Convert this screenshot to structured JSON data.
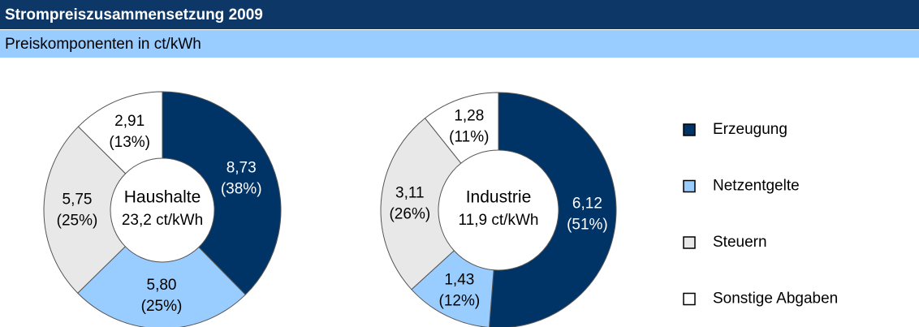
{
  "header": {
    "title": "Strompreiszusammensetzung 2009",
    "subtitle": "Preiskomponenten in ct/kWh"
  },
  "chart_data": [
    {
      "type": "pie",
      "center_label": "Haushalte",
      "center_sublabel": "23,2 ct/kWh",
      "categories": [
        "Erzeugung",
        "Netzentgelte",
        "Steuern",
        "Sonstige Abgaben"
      ],
      "values": [
        8.73,
        5.8,
        5.75,
        2.91
      ],
      "value_labels": [
        "8,73",
        "5,80",
        "5,75",
        "2,91"
      ],
      "shares": [
        38,
        25,
        25,
        13
      ],
      "share_labels": [
        "(38%)",
        "(25%)",
        "(25%)",
        "(13%)"
      ],
      "colors": [
        "#003366",
        "#99ccff",
        "#e8e8e8",
        "#ffffff"
      ]
    },
    {
      "type": "pie",
      "center_label": "Industrie",
      "center_sublabel": "11,9 ct/kWh",
      "categories": [
        "Erzeugung",
        "Netzentgelte",
        "Steuern",
        "Sonstige Abgaben"
      ],
      "values": [
        6.12,
        1.43,
        3.11,
        1.28
      ],
      "value_labels": [
        "6,12",
        "1,43",
        "3,11",
        "1,28"
      ],
      "shares": [
        51,
        12,
        26,
        11
      ],
      "share_labels": [
        "(51%)",
        "(12%)",
        "(26%)",
        "(11%)"
      ],
      "colors": [
        "#003366",
        "#99ccff",
        "#e8e8e8",
        "#ffffff"
      ]
    }
  ]
}
